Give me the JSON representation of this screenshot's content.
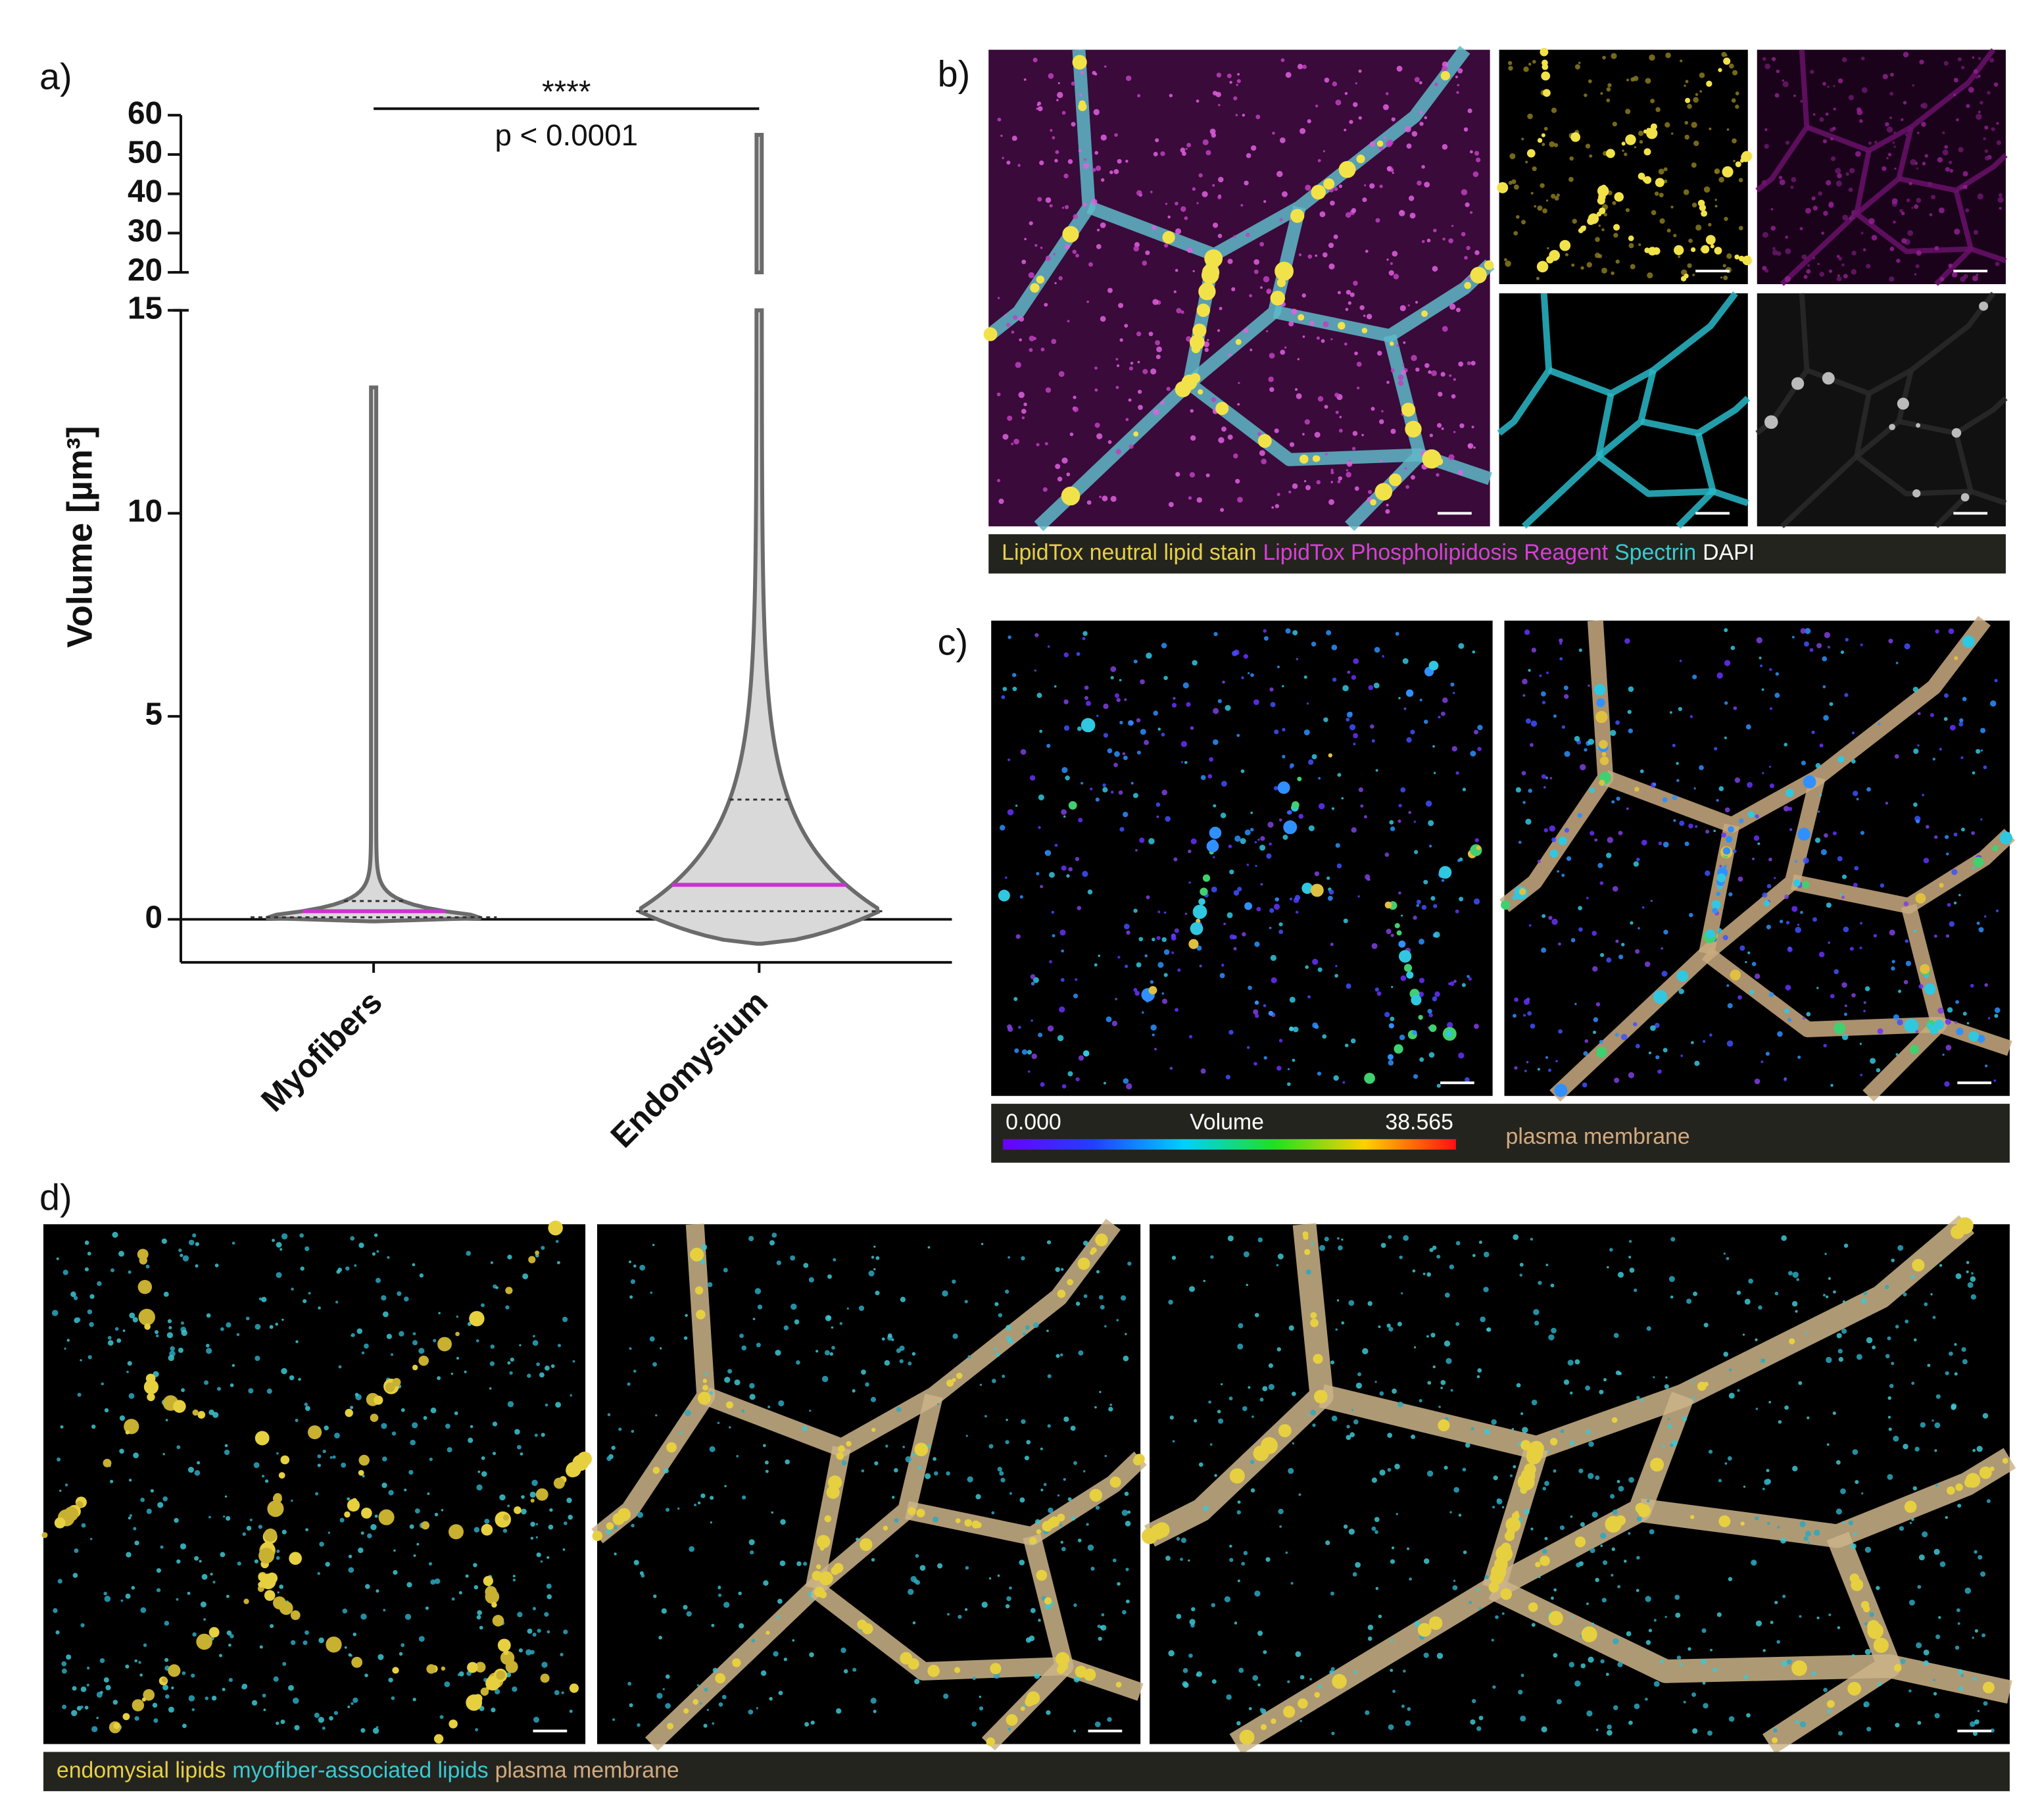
{
  "panels": {
    "a": "a)",
    "b": "b)",
    "c": "c)",
    "d": "d)"
  },
  "chart_data": {
    "type": "violin",
    "y_label": "Volume [µm³]",
    "categories": [
      "Myofibers",
      "Endomysium"
    ],
    "median": [
      0.2,
      0.85
    ],
    "q1": [
      0.05,
      0.2
    ],
    "q3": [
      0.45,
      2.95
    ],
    "min": [
      -0.05,
      -0.6
    ],
    "max": [
      13.1,
      55
    ],
    "fill": "#d9d9d9",
    "stroke": "#6b6b6b",
    "median_color": "#cc33cc",
    "ylim": [
      -1.06,
      15
    ],
    "yticks": [
      0,
      5,
      10,
      15
    ],
    "ylim_upper": [
      20,
      60
    ],
    "yticks_upper": [
      20,
      30,
      40,
      50,
      60
    ],
    "significance": {
      "stars": "****",
      "p": "p < 0.0001"
    }
  },
  "panel_b": {
    "caption": [
      {
        "text": "LipidTox neutral lipid stain",
        "color": "#e6cf4a"
      },
      {
        "text": "LipidTox Phospholipidosis Reagent",
        "color": "#d83ed8"
      },
      {
        "text": "Spectrin",
        "color": "#3cc8d2"
      },
      {
        "text": "DAPI",
        "color": "#ffffff"
      }
    ]
  },
  "panel_c": {
    "colorbar": {
      "min": {
        "value": 0,
        "label": "0.000"
      },
      "title": "Volume",
      "max": 38.565
    },
    "label": "plasma membrane",
    "label_color": "#d2aa7e"
  },
  "panel_d": {
    "caption": [
      {
        "text": "endomysial lipids",
        "color": "#e6cf4a"
      },
      {
        "text": "myofiber-associated lipids",
        "color": "#3cc8d2"
      },
      {
        "text": "plasma membrane",
        "color": "#d2aa7e"
      }
    ]
  }
}
